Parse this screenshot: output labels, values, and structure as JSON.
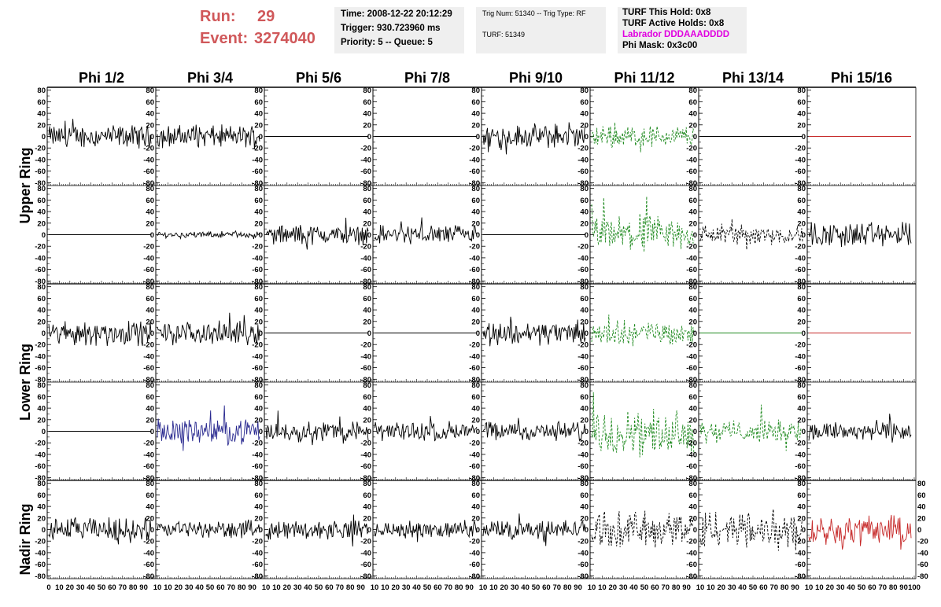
{
  "header": {
    "run_label": "Run:",
    "run_value": "29",
    "event_label": "Event:",
    "event_value": "3274040",
    "time": "Time: 2008-12-22 20:12:29",
    "trigger": "Trigger: 930.723960 ms",
    "priority": "Priority: 5 -- Queue: 5",
    "trig_num": "Trig Num: 51340 -- Trig Type: RF",
    "turf": "TURF: 51349",
    "turf_hold": "TURF This Hold: 0x8",
    "turf_active": "TURF Active Holds: 0x8",
    "labrador": "Labrador DDDAAADDDD",
    "phi_mask": "Phi Mask: 0x3c00",
    "labrador_color": "#e000e0"
  },
  "chart_data": {
    "type": "line",
    "columns": [
      "Phi 1/2",
      "Phi 3/4",
      "Phi 5/6",
      "Phi 7/8",
      "Phi 9/10",
      "Phi 11/12",
      "Phi 13/14",
      "Phi 15/16"
    ],
    "ring_labels": [
      "Upper Ring",
      "Lower Ring",
      "Nadir Ring"
    ],
    "ylim": [
      -85,
      85
    ],
    "yticks_left": [
      "80",
      "60",
      "40",
      "20",
      "0",
      "-20",
      "-40",
      "-60",
      "-80"
    ],
    "yticks_right": [
      "80",
      "60",
      "40",
      "20",
      "0",
      "-20",
      "-40",
      "-60",
      "-80"
    ],
    "yticks_nadir_right": [
      "80",
      "60",
      "40",
      "20",
      "0",
      "-20",
      "-40",
      "-60",
      "-80"
    ],
    "xlim": [
      0,
      100
    ],
    "xticks_nadir": [
      "0",
      "10",
      "20",
      "30",
      "40",
      "50",
      "60",
      "70",
      "80",
      "90",
      "100"
    ],
    "xtick_text": [
      "0",
      "10",
      "20",
      "30",
      "40",
      "50",
      "60",
      "70",
      "80",
      "90",
      "10",
      "10",
      "20",
      "30",
      "40",
      "50",
      "60",
      "70",
      "80",
      "90",
      "10",
      "10",
      "20",
      "30",
      "40",
      "50",
      "60",
      "70",
      "80",
      "90",
      "10",
      "10",
      "20",
      "30",
      "40",
      "50",
      "60",
      "70",
      "80",
      "90",
      "10",
      "10",
      "20",
      "30",
      "40",
      "50",
      "60",
      "70",
      "80",
      "90",
      "10",
      "10",
      "20",
      "30",
      "40",
      "50",
      "60",
      "70",
      "80",
      "90",
      "10",
      "10",
      "20",
      "30",
      "40",
      "50",
      "60",
      "70",
      "80",
      "90",
      "10",
      "10",
      "20",
      "30",
      "40",
      "50",
      "60",
      "70",
      "80",
      "90",
      "100"
    ],
    "colors": {
      "black": "#000000",
      "green": "#1f8a1f",
      "blue": "#2a2a90",
      "red": "#c62828"
    },
    "panels": [
      [
        {
          "c": "black",
          "d": 0,
          "a": 15
        },
        {
          "c": "black",
          "d": 0,
          "a": 15
        },
        {
          "c": "black",
          "d": 0,
          "a": 0
        },
        {
          "c": "black",
          "d": 0,
          "a": 0
        },
        {
          "c": "black",
          "d": 0,
          "a": 16
        },
        {
          "c": "green",
          "d": 1,
          "a": 15
        },
        {
          "c": "black",
          "d": 0,
          "a": 0
        },
        {
          "c": "red",
          "d": 0,
          "a": 0
        }
      ],
      [
        {
          "c": "black",
          "d": 0,
          "a": 0
        },
        {
          "c": "black",
          "d": 0,
          "a": 4
        },
        {
          "c": "black",
          "d": 0,
          "a": 13
        },
        {
          "c": "black",
          "d": 0,
          "a": 13
        },
        {
          "c": "black",
          "d": 0,
          "a": 0
        },
        {
          "c": "green",
          "d": 1,
          "a": 24
        },
        {
          "c": "black",
          "d": 1,
          "a": 14
        },
        {
          "c": "black",
          "d": 0,
          "a": 17
        }
      ],
      [
        {
          "c": "black",
          "d": 0,
          "a": 16
        },
        {
          "c": "black",
          "d": 0,
          "a": 15
        },
        {
          "c": "black",
          "d": 0,
          "a": 0
        },
        {
          "c": "black",
          "d": 0,
          "a": 0
        },
        {
          "c": "black",
          "d": 0,
          "a": 16
        },
        {
          "c": "green",
          "d": 1,
          "a": 16
        },
        {
          "c": "green",
          "d": 0,
          "a": 0
        },
        {
          "c": "red",
          "d": 0,
          "a": 0
        }
      ],
      [
        {
          "c": "black",
          "d": 0,
          "a": 0
        },
        {
          "c": "blue",
          "d": 0,
          "a": 16
        },
        {
          "c": "black",
          "d": 0,
          "a": 14
        },
        {
          "c": "black",
          "d": 0,
          "a": 13
        },
        {
          "c": "black",
          "d": 0,
          "a": 13
        },
        {
          "c": "green",
          "d": 1,
          "a": 28
        },
        {
          "c": "green",
          "d": 1,
          "a": 15
        },
        {
          "c": "black",
          "d": 0,
          "a": 14
        }
      ],
      [
        {
          "c": "black",
          "d": 0,
          "a": 16
        },
        {
          "c": "black",
          "d": 0,
          "a": 12
        },
        {
          "c": "black",
          "d": 0,
          "a": 12
        },
        {
          "c": "black",
          "d": 0,
          "a": 11
        },
        {
          "c": "black",
          "d": 0,
          "a": 13
        },
        {
          "c": "black",
          "d": 1,
          "a": 24
        },
        {
          "c": "black",
          "d": 1,
          "a": 27
        },
        {
          "c": "red",
          "d": 0,
          "a": 20
        }
      ]
    ]
  }
}
